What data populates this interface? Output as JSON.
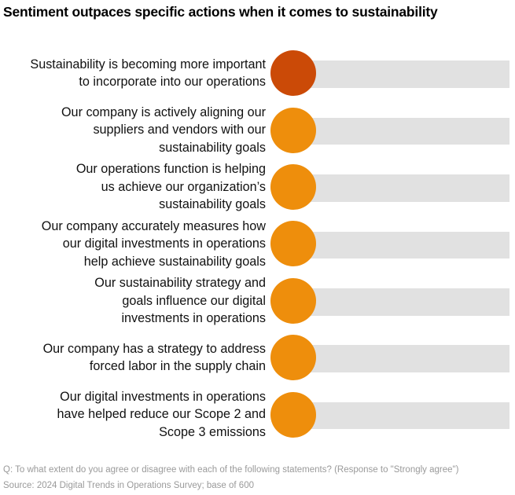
{
  "title": "Sentiment outpaces specific actions when it comes to sustainability",
  "rows": [
    {
      "label": "Sustainability is becoming more important\nto incorporate into our operations",
      "emphasis": true
    },
    {
      "label": "Our company is actively aligning our\nsuppliers and vendors with our\nsustainability goals",
      "emphasis": false
    },
    {
      "label": "Our operations function is helping\nus achieve our organization’s\nsustainability goals",
      "emphasis": false
    },
    {
      "label": "Our company accurately measures how\nour digital investments in operations\nhelp achieve sustainability goals",
      "emphasis": false
    },
    {
      "label": "Our sustainability strategy and\ngoals influence our digital\ninvestments in operations",
      "emphasis": false
    },
    {
      "label": "Our company has a strategy to address\nforced labor in the supply chain",
      "emphasis": false
    },
    {
      "label": "Our digital investments in operations\nhave helped reduce our Scope 2 and\nScope 3 emissions",
      "emphasis": false
    }
  ],
  "footnote": {
    "question": "Q: To what extent do you agree or disagree with each of the following statements? (Response to \"Strongly agree\")",
    "source": "Source: 2024 Digital Trends in Operations Survey; base of 600"
  },
  "colors": {
    "accent": "#cb4a07",
    "dot": "#ee8e0c",
    "track": "#e1e1e1",
    "footnote": "#9a9a9a"
  },
  "chart_data": {
    "type": "dot",
    "title": "Sentiment outpaces specific actions when it comes to sustainability",
    "categories": [
      "Sustainability is becoming more important to incorporate into our operations",
      "Our company is actively aligning our suppliers and vendors with our sustainability goals",
      "Our operations function is helping us achieve our organization’s sustainability goals",
      "Our company accurately measures how our digital investments in operations help achieve sustainability goals",
      "Our sustainability strategy and goals influence our digital investments in operations",
      "Our company has a strategy to address forced labor in the supply chain",
      "Our digital investments in operations have helped reduce our Scope 2 and Scope 3 emissions"
    ],
    "values_shown": false,
    "highlight_index": 0,
    "legend": "none",
    "notes": "Each statement is drawn as one orange dot at an identical left-anchored position on a full-width light-gray track; the first statement's dot is a darker red-orange for emphasis. No numeric values, axes, or tick labels are displayed.",
    "annotations": [
      "Q: To what extent do you agree or disagree with each of the following statements? (Response to \"Strongly agree\")",
      "Source: 2024 Digital Trends in Operations Survey; base of 600"
    ]
  }
}
